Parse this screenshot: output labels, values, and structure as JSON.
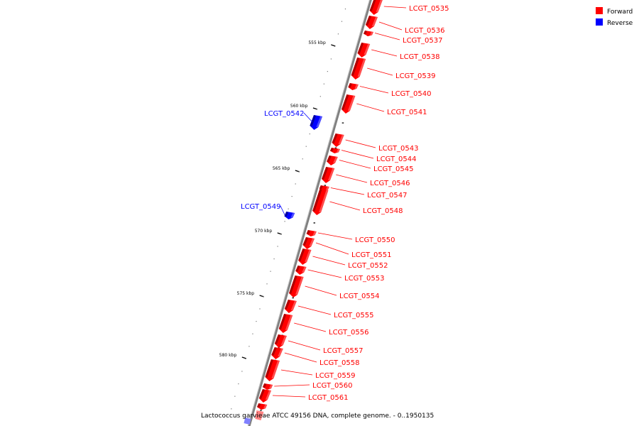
{
  "colors": {
    "forward": "#ff0000",
    "forward_dark": "#b00000",
    "forward_light": "#ff8080",
    "reverse": "#0000ff",
    "reverse_dark": "#0000a0",
    "reverse_light": "#8080ff",
    "backbone": "#808080"
  },
  "legend": {
    "forward_label": "Forward",
    "reverse_label": "Reverse"
  },
  "caption": "Lactococcus garvieae ATCC 49156 DNA, complete genome. - 0..1950135",
  "ticks": [
    {
      "label": "555 kbp",
      "kbp": 555
    },
    {
      "label": "560 kbp",
      "kbp": 560
    },
    {
      "label": "565 kbp",
      "kbp": 565
    },
    {
      "label": "570 kbp",
      "kbp": 570
    },
    {
      "label": "575 kbp",
      "kbp": 575
    },
    {
      "label": "580 kbp",
      "kbp": 580
    }
  ],
  "genes": [
    {
      "name": "LCGT_0535",
      "strand": "forward"
    },
    {
      "name": "LCGT_0536",
      "strand": "forward"
    },
    {
      "name": "LCGT_0537",
      "strand": "forward"
    },
    {
      "name": "LCGT_0538",
      "strand": "forward"
    },
    {
      "name": "LCGT_0539",
      "strand": "forward"
    },
    {
      "name": "LCGT_0540",
      "strand": "forward"
    },
    {
      "name": "LCGT_0541",
      "strand": "forward"
    },
    {
      "name": "LCGT_0542",
      "strand": "reverse"
    },
    {
      "name": "LCGT_0543",
      "strand": "forward"
    },
    {
      "name": "LCGT_0544",
      "strand": "forward"
    },
    {
      "name": "LCGT_0545",
      "strand": "forward"
    },
    {
      "name": "LCGT_0546",
      "strand": "forward"
    },
    {
      "name": "LCGT_0547",
      "strand": "forward"
    },
    {
      "name": "LCGT_0548",
      "strand": "forward"
    },
    {
      "name": "LCGT_0549",
      "strand": "reverse"
    },
    {
      "name": "LCGT_0550",
      "strand": "forward"
    },
    {
      "name": "LCGT_0551",
      "strand": "forward"
    },
    {
      "name": "LCGT_0552",
      "strand": "forward"
    },
    {
      "name": "LCGT_0553",
      "strand": "forward"
    },
    {
      "name": "LCGT_0554",
      "strand": "forward"
    },
    {
      "name": "LCGT_0555",
      "strand": "forward"
    },
    {
      "name": "LCGT_0556",
      "strand": "forward"
    },
    {
      "name": "LCGT_0557",
      "strand": "forward"
    },
    {
      "name": "LCGT_0558",
      "strand": "forward"
    },
    {
      "name": "LCGT_0559",
      "strand": "forward"
    },
    {
      "name": "LCGT_0560",
      "strand": "forward"
    },
    {
      "name": "LCGT_0561",
      "strand": "forward"
    }
  ]
}
